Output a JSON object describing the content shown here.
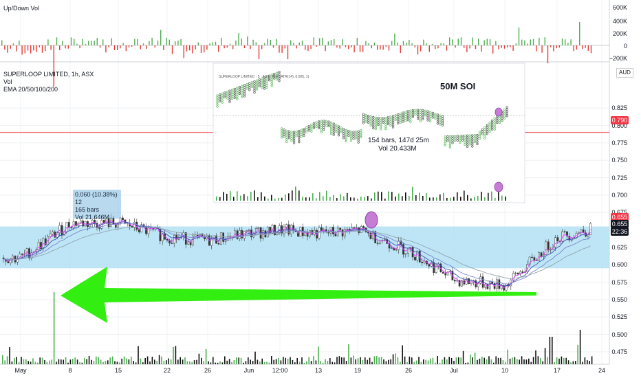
{
  "header": {
    "volume_panel_title": "Up/Down Vol",
    "symbol_line": "SUPERLOOP LIMITED, 1h, ASX",
    "vol_label": "Vol",
    "ema_label": "EMA 20/50/100/200",
    "currency": "AUD"
  },
  "top_volume_axis": [
    "600K",
    "400K",
    "200K",
    "0",
    "−200K"
  ],
  "price_axis": [
    "0.825",
    "0.800",
    "0.775",
    "0.750",
    "0.725",
    "0.700",
    "0.675",
    "0.650",
    "0.625",
    "0.600",
    "0.575",
    "0.550",
    "0.525",
    "0.500",
    "0.475"
  ],
  "time_axis": [
    "May",
    "8",
    "15",
    "22",
    "26",
    "Jun",
    "12:00",
    "13",
    "19",
    "26",
    "Jul",
    "10",
    "17",
    "24"
  ],
  "price_tags": {
    "line_level": "0.790",
    "upper_tag": "0.655",
    "last_price": "0.655",
    "countdown": "22:36"
  },
  "annotation_box": {
    "line1": "0.060 (10.38%) 12",
    "line2": "165 bars",
    "line3": "Vol 21.646M"
  },
  "inset": {
    "title_line": "SUPERLOOP LIMITED · 5 · ASX · PnF (ATR(14), 0.005, 1)",
    "soi_label": "50M SOI",
    "stats_line1": "154 bars, 147d 25m",
    "stats_line2": "Vol 20.433M"
  },
  "chart_data": {
    "type": "line",
    "title": "SUPERLOOP LIMITED, 1h, ASX",
    "ylabel": "",
    "ylim": [
      0.465,
      0.845
    ],
    "x": [
      "May",
      "8",
      "15",
      "22",
      "26",
      "Jun",
      "12:00",
      "13",
      "19",
      "26",
      "Jul",
      "10",
      "17",
      "24"
    ],
    "series": [
      {
        "name": "",
        "values": [
          0.61,
          0.66,
          0.66,
          0.64,
          0.635,
          0.645,
          0.65,
          0.645,
          0.65,
          0.62,
          0.578,
          0.57,
          0.64,
          0.655
        ]
      }
    ],
    "horizontal_line": 0.79,
    "highlight_zone": [
      0.595,
      0.655
    ],
    "colors": {
      "up": "#26a69a",
      "down": "#ef5350",
      "volume_up": "#4caf50",
      "volume_down": "#e53935",
      "zone": "#b3e0f5",
      "arrow": "#33ee11",
      "ema": [
        "#e040fb",
        "#3f51b5",
        "#7986cb",
        "#90a4ae"
      ]
    }
  }
}
